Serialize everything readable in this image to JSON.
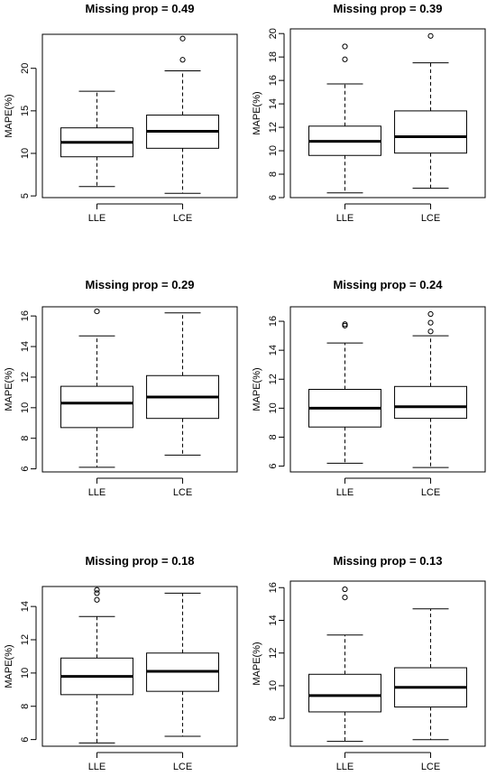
{
  "chart_data": [
    {
      "type": "boxplot",
      "title": "Missing prop = 0.49",
      "ylabel": "MAPE(%)",
      "ylim": [
        4.8,
        24.0
      ],
      "yticks": [
        5,
        10,
        15,
        20
      ],
      "categories": [
        "LLE",
        "LCE"
      ],
      "boxes": [
        {
          "name": "LLE",
          "whisker_low": 6.1,
          "q1": 9.6,
          "median": 11.3,
          "q3": 13.0,
          "whisker_high": 17.3,
          "outliers": []
        },
        {
          "name": "LCE",
          "whisker_low": 5.3,
          "q1": 10.6,
          "median": 12.6,
          "q3": 14.5,
          "whisker_high": 19.7,
          "outliers": [
            21.0,
            23.5
          ]
        }
      ]
    },
    {
      "type": "boxplot",
      "title": "Missing prop = 0.39",
      "ylabel": "MAPE(%)",
      "ylim": [
        6.0,
        20.4
      ],
      "yticks": [
        6,
        8,
        10,
        12,
        14,
        16,
        18,
        20
      ],
      "categories": [
        "LLE",
        "LCE"
      ],
      "boxes": [
        {
          "name": "LLE",
          "whisker_low": 6.4,
          "q1": 9.6,
          "median": 10.8,
          "q3": 12.1,
          "whisker_high": 15.7,
          "outliers": [
            17.8,
            18.9
          ]
        },
        {
          "name": "LCE",
          "whisker_low": 6.8,
          "q1": 9.8,
          "median": 11.2,
          "q3": 13.4,
          "whisker_high": 17.5,
          "outliers": [
            19.8
          ]
        }
      ]
    },
    {
      "type": "boxplot",
      "title": "Missing prop = 0.29",
      "ylabel": "MAPE(%)",
      "ylim": [
        5.8,
        16.6
      ],
      "yticks": [
        6,
        8,
        10,
        12,
        14,
        16
      ],
      "categories": [
        "LLE",
        "LCE"
      ],
      "boxes": [
        {
          "name": "LLE",
          "whisker_low": 6.1,
          "q1": 8.7,
          "median": 10.3,
          "q3": 11.4,
          "whisker_high": 14.7,
          "outliers": [
            16.3
          ]
        },
        {
          "name": "LCE",
          "whisker_low": 6.9,
          "q1": 9.3,
          "median": 10.7,
          "q3": 12.1,
          "whisker_high": 16.2,
          "outliers": []
        }
      ]
    },
    {
      "type": "boxplot",
      "title": "Missing prop = 0.24",
      "ylabel": "MAPE(%)",
      "ylim": [
        5.6,
        17.0
      ],
      "yticks": [
        6,
        8,
        10,
        12,
        14,
        16
      ],
      "categories": [
        "LLE",
        "LCE"
      ],
      "boxes": [
        {
          "name": "LLE",
          "whisker_low": 6.2,
          "q1": 8.7,
          "median": 10.0,
          "q3": 11.3,
          "whisker_high": 14.5,
          "outliers": [
            15.7,
            15.8
          ]
        },
        {
          "name": "LCE",
          "whisker_low": 5.9,
          "q1": 9.3,
          "median": 10.1,
          "q3": 11.5,
          "whisker_high": 15.0,
          "outliers": [
            15.3,
            15.9,
            16.5
          ]
        }
      ]
    },
    {
      "type": "boxplot",
      "title": "Missing prop = 0.18",
      "ylabel": "MAPE(%)",
      "ylim": [
        5.6,
        15.2
      ],
      "yticks": [
        6,
        8,
        10,
        12,
        14
      ],
      "categories": [
        "LLE",
        "LCE"
      ],
      "boxes": [
        {
          "name": "LLE",
          "whisker_low": 5.8,
          "q1": 8.7,
          "median": 9.8,
          "q3": 10.9,
          "whisker_high": 13.4,
          "outliers": [
            14.4,
            14.8,
            15.0
          ]
        },
        {
          "name": "LCE",
          "whisker_low": 6.2,
          "q1": 8.9,
          "median": 10.1,
          "q3": 11.2,
          "whisker_high": 14.8,
          "outliers": []
        }
      ]
    },
    {
      "type": "boxplot",
      "title": "Missing prop = 0.13",
      "ylabel": "MAPE(%)",
      "ylim": [
        6.3,
        16.4
      ],
      "yticks": [
        8,
        10,
        12,
        14,
        16
      ],
      "categories": [
        "LLE",
        "LCE"
      ],
      "boxes": [
        {
          "name": "LLE",
          "whisker_low": 6.6,
          "q1": 8.4,
          "median": 9.4,
          "q3": 10.7,
          "whisker_high": 13.1,
          "outliers": [
            15.4,
            15.9
          ]
        },
        {
          "name": "LCE",
          "whisker_low": 6.7,
          "q1": 8.7,
          "median": 9.9,
          "q3": 11.1,
          "whisker_high": 14.7,
          "outliers": []
        }
      ]
    }
  ]
}
